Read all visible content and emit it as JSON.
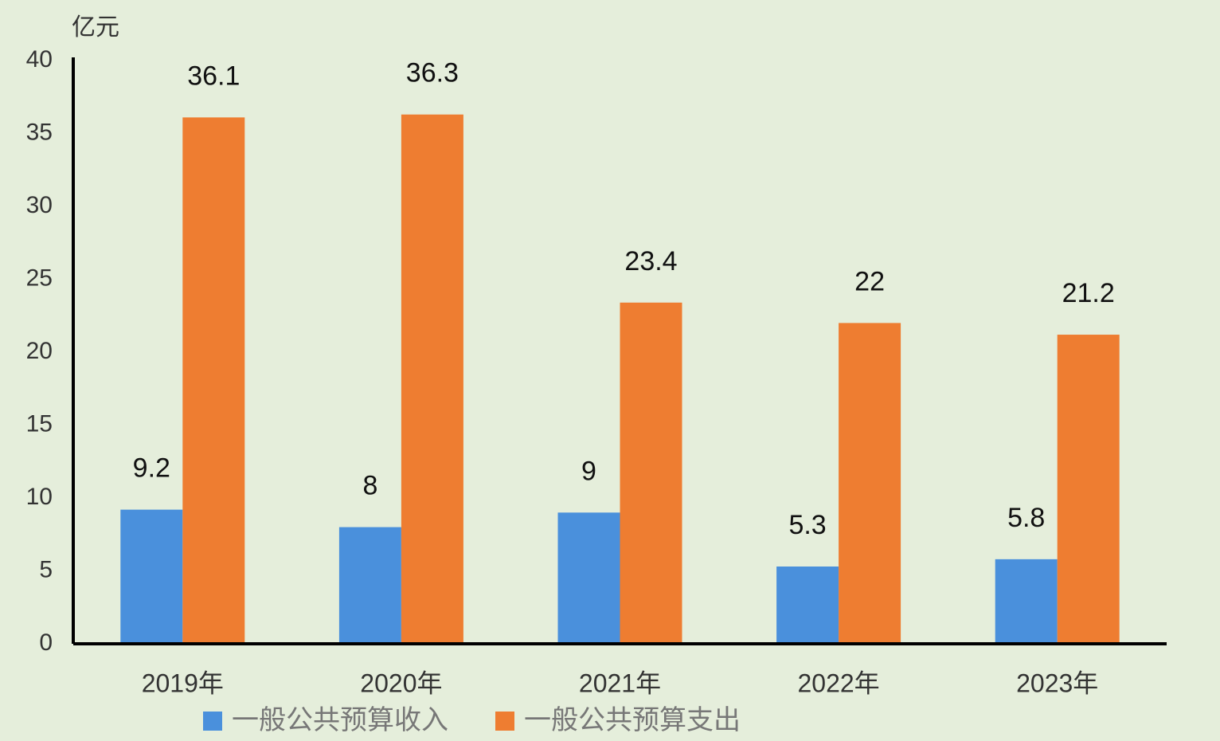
{
  "chart_data": {
    "type": "bar",
    "y_label": "亿元",
    "categories": [
      "2019年",
      "2020年",
      "2021年",
      "2022年",
      "2023年"
    ],
    "series": [
      {
        "name": "一般公共预算收入",
        "color": "#4a90dc",
        "values": [
          9.2,
          8,
          9,
          5.3,
          5.8
        ]
      },
      {
        "name": "一般公共预算支出",
        "color": "#ee7d31",
        "values": [
          36.1,
          36.3,
          23.4,
          22,
          21.2
        ]
      }
    ],
    "ylim": [
      0,
      40
    ],
    "yticks": [
      0,
      5,
      10,
      15,
      20,
      25,
      30,
      35,
      40
    ],
    "grid": false
  }
}
